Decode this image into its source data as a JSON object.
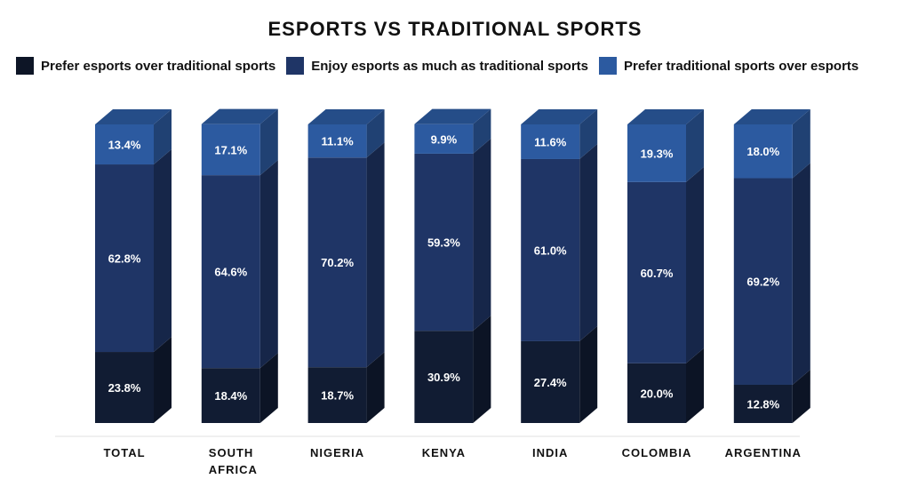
{
  "chart_data": {
    "type": "bar",
    "stacked": true,
    "title": "ESPORTS VS TRADITIONAL SPORTS",
    "categories": [
      "TOTAL",
      "SOUTH AFRICA",
      "NIGERIA",
      "KENYA",
      "INDIA",
      "COLOMBIA",
      "ARGENTINA"
    ],
    "series": [
      {
        "name": "Prefer esports over traditional sports",
        "values": [
          23.8,
          18.4,
          18.7,
          30.9,
          27.4,
          20.0,
          12.8
        ],
        "labels": [
          "23.8%",
          "18.4%",
          "18.7%",
          "30.9%",
          "27.4%",
          "20.0%",
          "12.8%"
        ],
        "color": "#111c33"
      },
      {
        "name": "Enjoy esports as much as traditional sports",
        "values": [
          62.8,
          64.6,
          70.2,
          59.3,
          61.0,
          60.7,
          69.2
        ],
        "labels": [
          "62.8%",
          "64.6%",
          "70.2%",
          "59.3%",
          "61.0%",
          "60.7%",
          "69.2%"
        ],
        "color": "#1f3566"
      },
      {
        "name": "Prefer traditional sports over esports",
        "values": [
          13.4,
          17.1,
          11.1,
          9.9,
          11.6,
          19.3,
          18.0
        ],
        "labels": [
          "13.4%",
          "17.1%",
          "11.1%",
          "9.9%",
          "11.6%",
          "19.3%",
          "18.0%"
        ],
        "color": "#2c5aa0"
      }
    ],
    "ylim": [
      0,
      100
    ],
    "legend_position": "top",
    "grid": false
  }
}
